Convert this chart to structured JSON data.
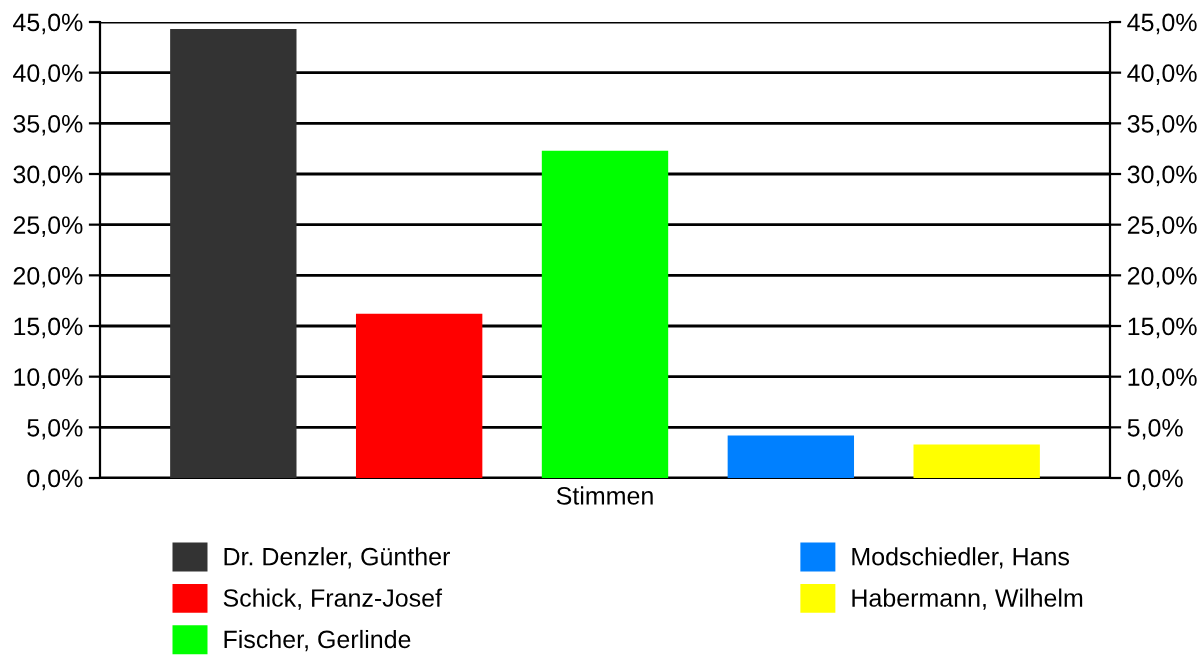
{
  "chart_data": {
    "type": "bar",
    "categories": [
      "Stimmen"
    ],
    "series": [
      {
        "name": "Dr. Denzler, Günther",
        "color": "#333333",
        "values": [
          44.3
        ]
      },
      {
        "name": "Schick, Franz-Josef",
        "color": "#ff0000",
        "values": [
          16.2
        ]
      },
      {
        "name": "Fischer, Gerlinde",
        "color": "#00ff00",
        "values": [
          32.3
        ]
      },
      {
        "name": "Modschiedler, Hans",
        "color": "#0080ff",
        "values": [
          4.2
        ]
      },
      {
        "name": "Habermann, Wilhelm",
        "color": "#ffff00",
        "values": [
          3.3
        ]
      }
    ],
    "ylim": [
      0,
      45
    ],
    "yticks": [
      {
        "value": 0,
        "label": "0,0%"
      },
      {
        "value": 5,
        "label": "5,0%"
      },
      {
        "value": 10,
        "label": "10,0%"
      },
      {
        "value": 15,
        "label": "15,0%"
      },
      {
        "value": 20,
        "label": "20,0%"
      },
      {
        "value": 25,
        "label": "25,0%"
      },
      {
        "value": 30,
        "label": "30,0%"
      },
      {
        "value": 35,
        "label": "35,0%"
      },
      {
        "value": 40,
        "label": "40,0%"
      },
      {
        "value": 45,
        "label": "45,0%"
      }
    ],
    "grid": "y",
    "legend": "bottom"
  }
}
